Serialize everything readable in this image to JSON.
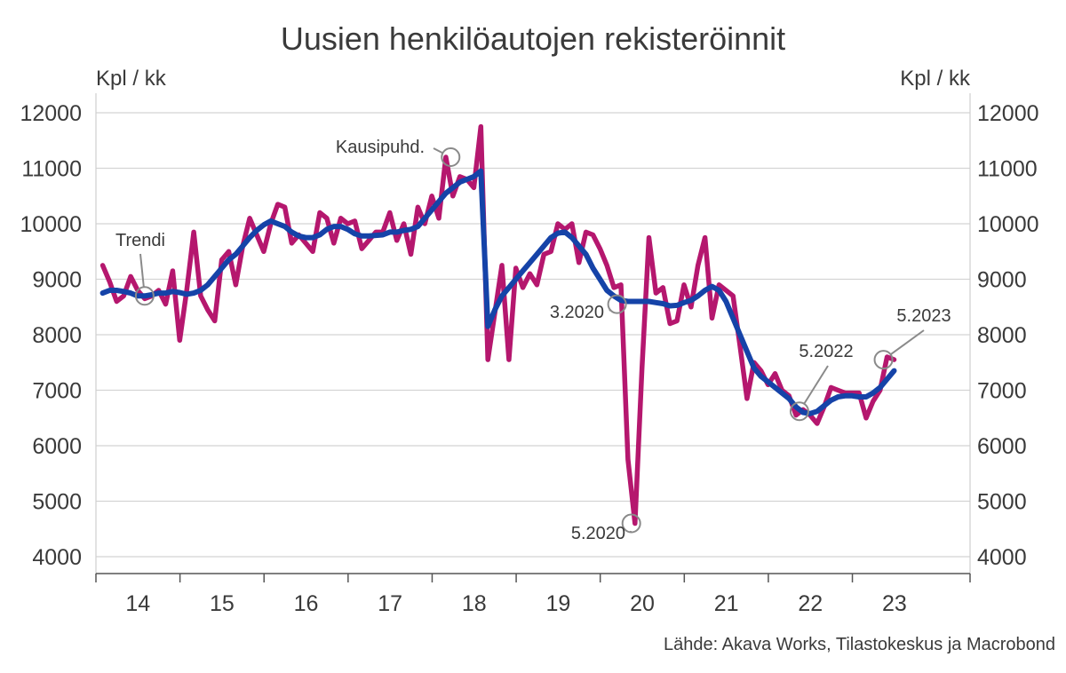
{
  "chart_data": {
    "type": "line",
    "title": "Uusien henkilöautojen rekisteröinnit",
    "ylabel_left": "Kpl / kk",
    "ylabel_right": "Kpl / kk",
    "source": "Lähde: Akava Works, Tilastokeskus ja Macrobond",
    "ylim": [
      4000,
      12000
    ],
    "yticks": [
      4000,
      5000,
      6000,
      7000,
      8000,
      9000,
      10000,
      11000,
      12000
    ],
    "xlim": [
      2013.5,
      2023.9
    ],
    "xtick_labels": [
      {
        "x": 2014,
        "label": "14"
      },
      {
        "x": 2015,
        "label": "15"
      },
      {
        "x": 2016,
        "label": "16"
      },
      {
        "x": 2017,
        "label": "17"
      },
      {
        "x": 2018,
        "label": "18"
      },
      {
        "x": 2019,
        "label": "19"
      },
      {
        "x": 2020,
        "label": "20"
      },
      {
        "x": 2021,
        "label": "21"
      },
      {
        "x": 2022,
        "label": "22"
      },
      {
        "x": 2023,
        "label": "23"
      }
    ],
    "grid": true,
    "series": [
      {
        "name": "Kausipuhd.",
        "color": "#b5176e",
        "x_start": 2013.58,
        "x_step": 0.08333,
        "values": [
          9250,
          8950,
          8600,
          8700,
          9050,
          8800,
          8650,
          8700,
          8800,
          8550,
          9150,
          7900,
          8800,
          9850,
          8700,
          8450,
          8250,
          9350,
          9500,
          8900,
          9600,
          10100,
          9800,
          9500,
          10000,
          10350,
          10300,
          9650,
          9800,
          9650,
          9500,
          10200,
          10100,
          9650,
          10100,
          10000,
          10050,
          9550,
          9700,
          9850,
          9850,
          10200,
          9700,
          10000,
          9450,
          10300,
          10000,
          10500,
          10100,
          11200,
          10500,
          10850,
          10800,
          10650,
          11750,
          7550,
          8400,
          9250,
          7550,
          9200,
          8850,
          9100,
          8900,
          9450,
          9500,
          10000,
          9900,
          10000,
          9300,
          9850,
          9800,
          9550,
          9250,
          8850,
          8900,
          5750,
          4600,
          7400,
          9750,
          8750,
          8850,
          8200,
          8250,
          8900,
          8500,
          9250,
          9750,
          8300,
          8900,
          8800,
          8700,
          7800,
          6850,
          7500,
          7350,
          7100,
          7300,
          7000,
          6900,
          6550,
          6650,
          6550,
          6400,
          6700,
          7050,
          7000,
          6950,
          6950,
          6950,
          6500,
          6800,
          7000,
          7600,
          7550
        ]
      },
      {
        "name": "Trendi",
        "color": "#1543a8",
        "x_start": 2013.58,
        "x_step": 0.08333,
        "values": [
          8750,
          8800,
          8800,
          8780,
          8750,
          8700,
          8700,
          8720,
          8750,
          8750,
          8780,
          8760,
          8730,
          8750,
          8800,
          8900,
          9050,
          9200,
          9350,
          9450,
          9600,
          9750,
          9880,
          9980,
          10050,
          10000,
          9950,
          9850,
          9780,
          9750,
          9750,
          9800,
          9900,
          9950,
          9950,
          9900,
          9820,
          9780,
          9780,
          9790,
          9800,
          9850,
          9850,
          9880,
          9900,
          9950,
          10100,
          10250,
          10400,
          10550,
          10650,
          10750,
          10800,
          10850,
          10950,
          8150,
          8450,
          8700,
          8850,
          9000,
          9150,
          9300,
          9450,
          9600,
          9750,
          9830,
          9850,
          9750,
          9600,
          9450,
          9200,
          9000,
          8800,
          8700,
          8620,
          8600,
          8600,
          8600,
          8600,
          8580,
          8560,
          8520,
          8530,
          8580,
          8620,
          8700,
          8800,
          8870,
          8800,
          8600,
          8300,
          8000,
          7700,
          7400,
          7250,
          7150,
          7050,
          6950,
          6850,
          6700,
          6600,
          6580,
          6620,
          6720,
          6820,
          6880,
          6900,
          6900,
          6880,
          6880,
          6950,
          7050,
          7200,
          7350
        ]
      }
    ],
    "annotations": [
      {
        "text": "Kausipuhd.",
        "x": 2017.72,
        "y": 11200
      },
      {
        "text": "Trendi",
        "x": 2014.08,
        "y": 8700
      },
      {
        "text": "3.2020",
        "x": 2019.7,
        "y": 8550
      },
      {
        "text": "5.2020",
        "x": 2019.87,
        "y": 4600
      },
      {
        "text": "5.2022",
        "x": 2021.87,
        "y": 6620
      },
      {
        "text": "5.2023",
        "x": 2022.87,
        "y": 7550
      }
    ]
  }
}
